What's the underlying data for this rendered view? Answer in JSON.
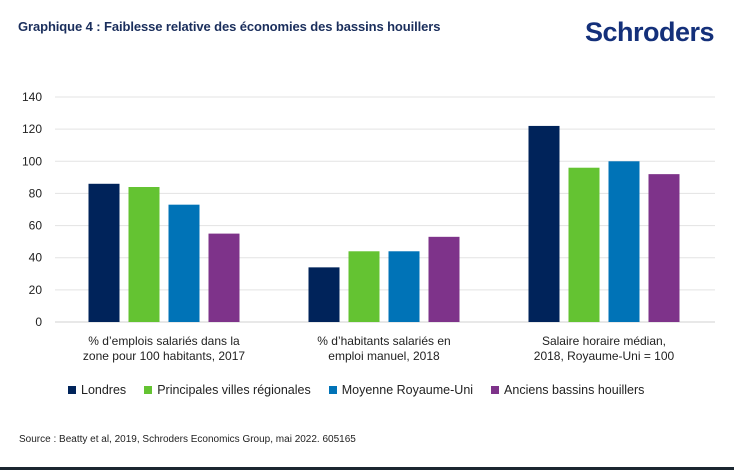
{
  "header": {
    "title": "Graphique 4 : Faiblesse relative des économies des bassins houillers",
    "logo": "Schroders"
  },
  "footer": {
    "source": "Source : Beatty et al, 2019, Schroders Economics Group, mai 2022. 605165"
  },
  "colors": {
    "Londres": "#00235a",
    "Principales villes régionales": "#64c332",
    "Moyenne Royaume-Uni": "#0073b7",
    "Anciens bassins houillers": "#7e338a"
  },
  "chart_data": {
    "type": "bar",
    "title": "Graphique 4 : Faiblesse relative des économies des bassins houillers",
    "xlabel": "",
    "ylabel": "",
    "ylim": [
      0,
      140
    ],
    "yticks": [
      0,
      20,
      40,
      60,
      80,
      100,
      120,
      140
    ],
    "grid": true,
    "legend_position": "bottom",
    "categories": [
      [
        "% d’emplois salariés dans la",
        "zone pour 100 habitants, 2017"
      ],
      [
        "% d’habitants salariés en",
        "emploi manuel, 2018"
      ],
      [
        "Salaire horaire médian,",
        "2018, Royaume-Uni = 100"
      ]
    ],
    "series": [
      {
        "name": "Londres",
        "values": [
          86,
          34,
          122
        ]
      },
      {
        "name": "Principales villes régionales",
        "values": [
          84,
          44,
          96
        ]
      },
      {
        "name": "Moyenne Royaume-Uni",
        "values": [
          73,
          44,
          100
        ]
      },
      {
        "name": "Anciens bassins houillers",
        "values": [
          55,
          53,
          92
        ]
      }
    ]
  }
}
